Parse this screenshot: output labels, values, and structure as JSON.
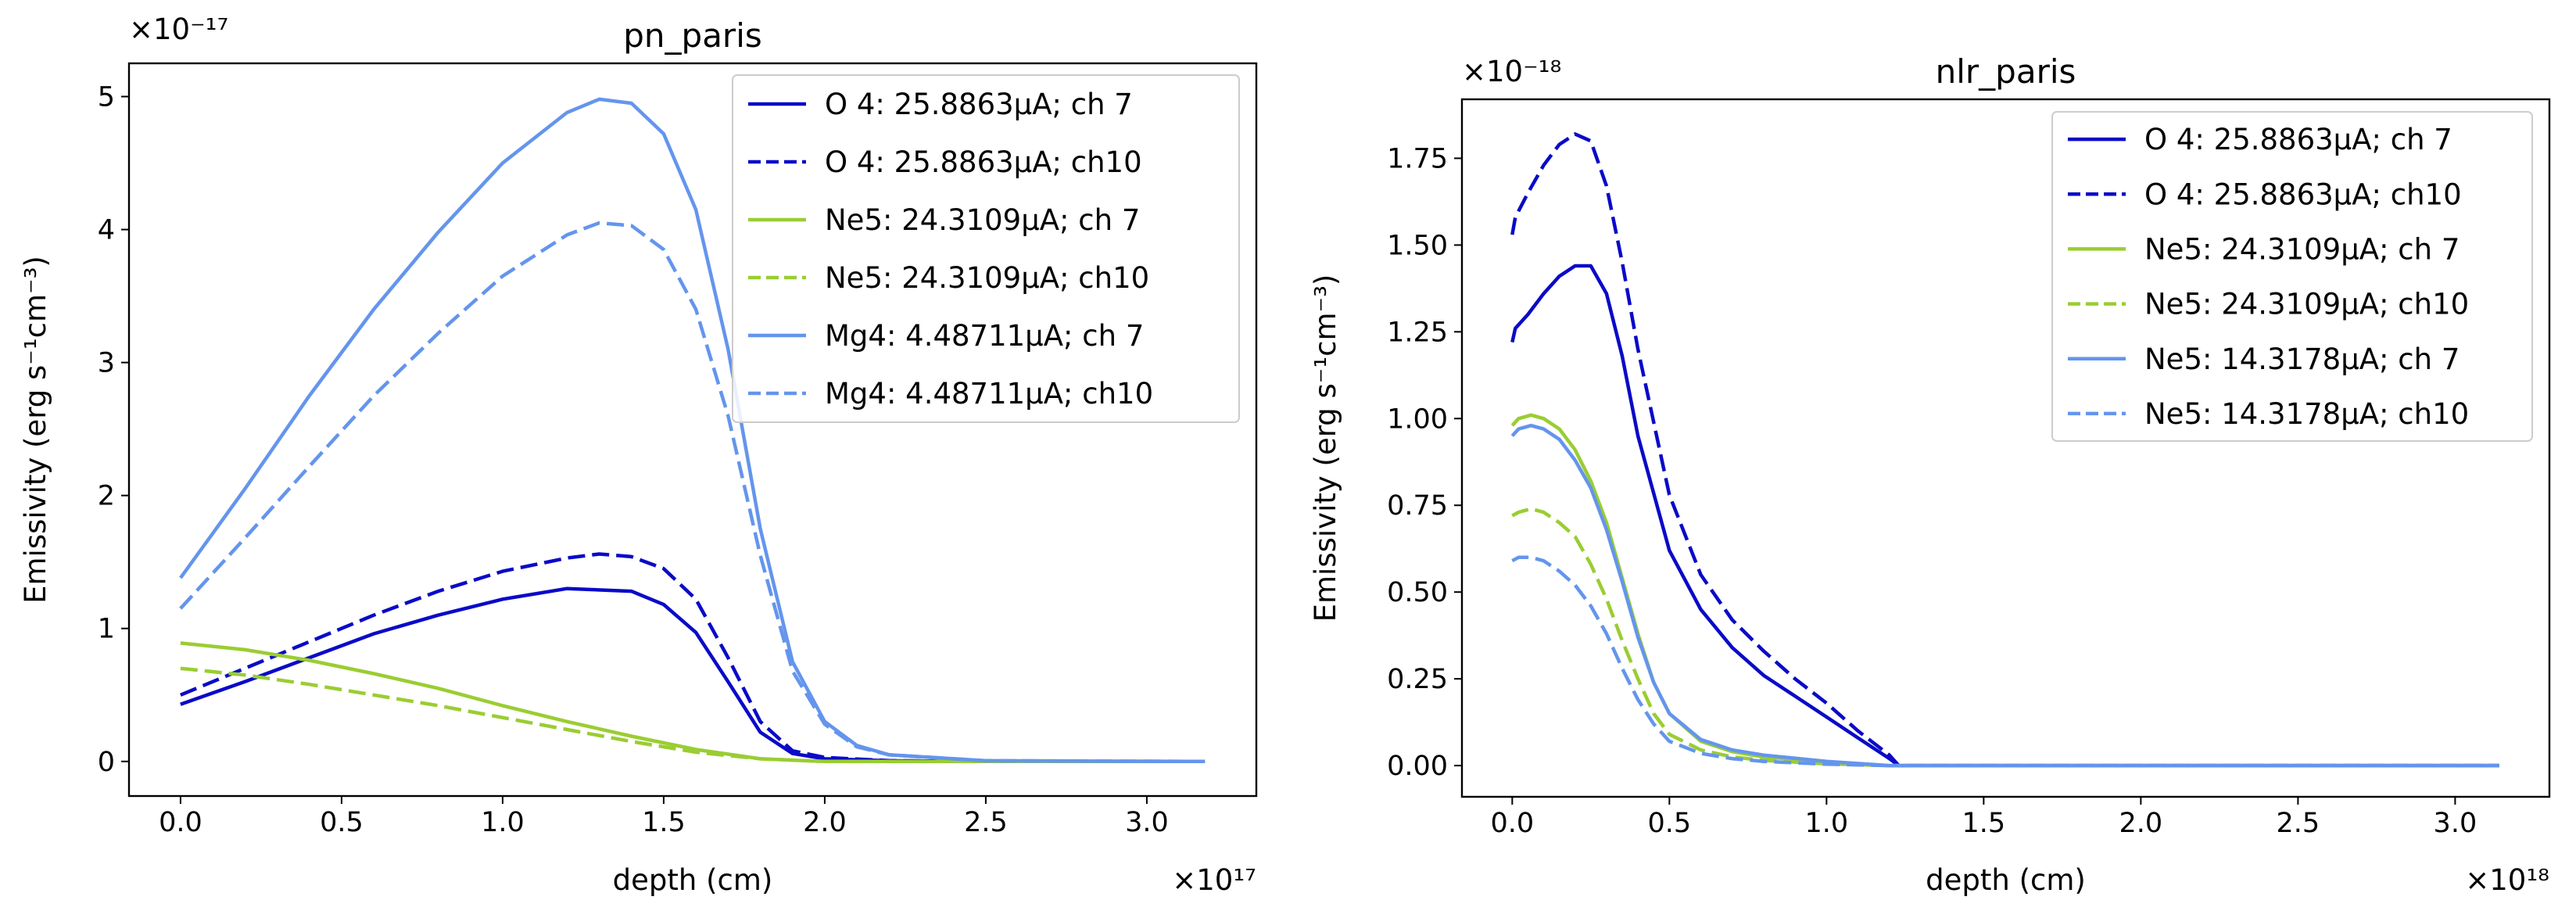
{
  "chart_data": [
    {
      "type": "line",
      "title": "pn_paris",
      "xlabel": "depth (cm)",
      "ylabel": "Emissivity (erg s⁻¹cm⁻³)",
      "x_multiplier": "×10¹⁷",
      "y_multiplier": "×10⁻¹⁷",
      "xlim": [
        -0.16,
        3.34
      ],
      "ylim": [
        -0.26,
        5.25
      ],
      "xticks": [
        0.0,
        0.5,
        1.0,
        1.5,
        2.0,
        2.5,
        3.0
      ],
      "xtick_labels": [
        "0.0",
        "0.5",
        "1.0",
        "1.5",
        "2.0",
        "2.5",
        "3.0"
      ],
      "yticks": [
        0,
        1,
        2,
        3,
        4,
        5
      ],
      "ytick_labels": [
        "0",
        "1",
        "2",
        "3",
        "4",
        "5"
      ],
      "legend_position": "top-right",
      "series": [
        {
          "name": "O 4: 25.8863μA; ch 7",
          "color": "#0a0ac8",
          "dash": "solid",
          "x": [
            0.0,
            0.2,
            0.4,
            0.6,
            0.8,
            1.0,
            1.2,
            1.4,
            1.5,
            1.6,
            1.7,
            1.8,
            1.9,
            2.0,
            2.2,
            2.5,
            3.18
          ],
          "y": [
            0.43,
            0.6,
            0.78,
            0.96,
            1.1,
            1.22,
            1.3,
            1.28,
            1.18,
            0.97,
            0.6,
            0.22,
            0.06,
            0.02,
            0.005,
            0.0,
            0.0
          ]
        },
        {
          "name": "O 4: 25.8863μA; ch10",
          "color": "#0a0ac8",
          "dash": "dashed",
          "x": [
            0.0,
            0.2,
            0.4,
            0.6,
            0.8,
            1.0,
            1.2,
            1.3,
            1.4,
            1.5,
            1.6,
            1.7,
            1.8,
            1.9,
            2.0,
            2.2,
            2.5,
            3.18
          ],
          "y": [
            0.5,
            0.7,
            0.9,
            1.1,
            1.28,
            1.43,
            1.53,
            1.56,
            1.54,
            1.45,
            1.22,
            0.78,
            0.3,
            0.08,
            0.03,
            0.006,
            0.0,
            0.0
          ]
        },
        {
          "name": "Ne5: 24.3109μA; ch 7",
          "color": "#9acd32",
          "dash": "solid",
          "x": [
            0.0,
            0.2,
            0.4,
            0.6,
            0.8,
            1.0,
            1.2,
            1.4,
            1.6,
            1.8,
            2.0,
            2.5,
            3.18
          ],
          "y": [
            0.89,
            0.84,
            0.76,
            0.66,
            0.55,
            0.42,
            0.3,
            0.19,
            0.09,
            0.02,
            0.0,
            0.0,
            0.0
          ]
        },
        {
          "name": "Ne5: 24.3109μA; ch10",
          "color": "#9acd32",
          "dash": "dashed",
          "x": [
            0.0,
            0.2,
            0.4,
            0.6,
            0.8,
            1.0,
            1.2,
            1.4,
            1.6,
            1.8,
            2.0,
            2.5,
            3.18
          ],
          "y": [
            0.7,
            0.65,
            0.58,
            0.5,
            0.42,
            0.33,
            0.24,
            0.15,
            0.07,
            0.02,
            0.0,
            0.0,
            0.0
          ]
        },
        {
          "name": "Mg4: 4.48711μA; ch 7",
          "color": "#6495ed",
          "dash": "solid",
          "x": [
            0.0,
            0.2,
            0.4,
            0.6,
            0.8,
            1.0,
            1.2,
            1.3,
            1.4,
            1.5,
            1.6,
            1.7,
            1.8,
            1.9,
            2.0,
            2.1,
            2.2,
            2.5,
            3.18
          ],
          "y": [
            1.38,
            2.05,
            2.75,
            3.4,
            3.98,
            4.5,
            4.88,
            4.98,
            4.95,
            4.72,
            4.15,
            3.1,
            1.75,
            0.75,
            0.3,
            0.12,
            0.05,
            0.005,
            0.0
          ]
        },
        {
          "name": "Mg4: 4.48711μA; ch10",
          "color": "#6495ed",
          "dash": "dashed",
          "x": [
            0.0,
            0.2,
            0.4,
            0.6,
            0.8,
            1.0,
            1.2,
            1.3,
            1.4,
            1.5,
            1.6,
            1.7,
            1.8,
            1.9,
            2.0,
            2.1,
            2.2,
            2.5,
            3.18
          ],
          "y": [
            1.15,
            1.68,
            2.22,
            2.75,
            3.22,
            3.65,
            3.96,
            4.05,
            4.03,
            3.85,
            3.4,
            2.6,
            1.55,
            0.68,
            0.28,
            0.11,
            0.05,
            0.005,
            0.0
          ]
        }
      ]
    },
    {
      "type": "line",
      "title": "nlr_paris",
      "xlabel": "depth (cm)",
      "ylabel": "Emissivity (erg s⁻¹cm⁻³)",
      "x_multiplier": "×10¹⁸",
      "y_multiplier": "×10⁻¹⁸",
      "xlim": [
        -0.16,
        3.3
      ],
      "ylim": [
        -0.09,
        1.92
      ],
      "xticks": [
        0.0,
        0.5,
        1.0,
        1.5,
        2.0,
        2.5,
        3.0
      ],
      "xtick_labels": [
        "0.0",
        "0.5",
        "1.0",
        "1.5",
        "2.0",
        "2.5",
        "3.0"
      ],
      "yticks": [
        0.0,
        0.25,
        0.5,
        0.75,
        1.0,
        1.25,
        1.5,
        1.75
      ],
      "ytick_labels": [
        "0.00",
        "0.25",
        "0.50",
        "0.75",
        "1.00",
        "1.25",
        "1.50",
        "1.75"
      ],
      "legend_position": "top-right",
      "series": [
        {
          "name": "O 4: 25.8863μA; ch 7",
          "color": "#0a0ac8",
          "dash": "solid",
          "x": [
            0.0,
            0.01,
            0.05,
            0.1,
            0.15,
            0.2,
            0.25,
            0.3,
            0.35,
            0.4,
            0.5,
            0.6,
            0.7,
            0.8,
            0.9,
            1.0,
            1.1,
            1.2,
            1.23,
            1.5,
            2.0,
            2.5,
            3.14
          ],
          "y": [
            1.22,
            1.26,
            1.3,
            1.36,
            1.41,
            1.44,
            1.44,
            1.36,
            1.18,
            0.95,
            0.62,
            0.45,
            0.34,
            0.26,
            0.2,
            0.14,
            0.08,
            0.02,
            0.0,
            0.0,
            0.0,
            0.0,
            0.0
          ]
        },
        {
          "name": "O 4: 25.8863μA; ch10",
          "color": "#0a0ac8",
          "dash": "dashed",
          "x": [
            0.0,
            0.01,
            0.05,
            0.1,
            0.15,
            0.2,
            0.25,
            0.3,
            0.35,
            0.4,
            0.5,
            0.6,
            0.7,
            0.8,
            0.9,
            1.0,
            1.1,
            1.2,
            1.23,
            1.5,
            2.0,
            2.5,
            3.14
          ],
          "y": [
            1.53,
            1.58,
            1.65,
            1.73,
            1.79,
            1.82,
            1.8,
            1.67,
            1.45,
            1.2,
            0.78,
            0.55,
            0.42,
            0.33,
            0.25,
            0.18,
            0.1,
            0.03,
            0.0,
            0.0,
            0.0,
            0.0,
            0.0
          ]
        },
        {
          "name": "Ne5: 24.3109μA; ch 7",
          "color": "#9acd32",
          "dash": "solid",
          "x": [
            0.0,
            0.02,
            0.06,
            0.1,
            0.15,
            0.2,
            0.25,
            0.3,
            0.35,
            0.4,
            0.45,
            0.5,
            0.6,
            0.7,
            0.8,
            1.0,
            1.2,
            1.5,
            2.0,
            2.5,
            3.14
          ],
          "y": [
            0.98,
            1.0,
            1.01,
            1.0,
            0.97,
            0.91,
            0.82,
            0.7,
            0.54,
            0.38,
            0.24,
            0.15,
            0.07,
            0.04,
            0.025,
            0.01,
            0.0,
            0.0,
            0.0,
            0.0,
            0.0
          ]
        },
        {
          "name": "Ne5: 24.3109μA; ch10",
          "color": "#9acd32",
          "dash": "dashed",
          "x": [
            0.0,
            0.02,
            0.06,
            0.1,
            0.15,
            0.2,
            0.25,
            0.3,
            0.35,
            0.4,
            0.45,
            0.5,
            0.6,
            0.7,
            0.8,
            1.0,
            1.2,
            1.5,
            2.0,
            2.5,
            3.14
          ],
          "y": [
            0.72,
            0.73,
            0.74,
            0.73,
            0.7,
            0.66,
            0.58,
            0.48,
            0.36,
            0.25,
            0.15,
            0.09,
            0.045,
            0.025,
            0.015,
            0.005,
            0.0,
            0.0,
            0.0,
            0.0,
            0.0
          ]
        },
        {
          "name": "Ne5: 14.3178μA; ch 7",
          "color": "#6495ed",
          "dash": "solid",
          "x": [
            0.0,
            0.02,
            0.06,
            0.1,
            0.15,
            0.2,
            0.25,
            0.3,
            0.35,
            0.4,
            0.45,
            0.5,
            0.6,
            0.7,
            0.8,
            1.0,
            1.2,
            1.5,
            2.0,
            2.5,
            3.14
          ],
          "y": [
            0.95,
            0.97,
            0.98,
            0.97,
            0.94,
            0.88,
            0.8,
            0.68,
            0.53,
            0.37,
            0.24,
            0.15,
            0.075,
            0.045,
            0.03,
            0.012,
            0.0,
            0.0,
            0.0,
            0.0,
            0.0
          ]
        },
        {
          "name": "Ne5: 14.3178μA; ch10",
          "color": "#6495ed",
          "dash": "dashed",
          "x": [
            0.0,
            0.02,
            0.06,
            0.1,
            0.15,
            0.2,
            0.25,
            0.3,
            0.35,
            0.4,
            0.45,
            0.5,
            0.6,
            0.7,
            0.8,
            1.0,
            1.2,
            1.5,
            2.0,
            2.5,
            3.14
          ],
          "y": [
            0.59,
            0.6,
            0.6,
            0.59,
            0.56,
            0.52,
            0.46,
            0.38,
            0.28,
            0.19,
            0.12,
            0.07,
            0.035,
            0.02,
            0.012,
            0.004,
            0.0,
            0.0,
            0.0,
            0.0,
            0.0
          ]
        }
      ]
    }
  ]
}
